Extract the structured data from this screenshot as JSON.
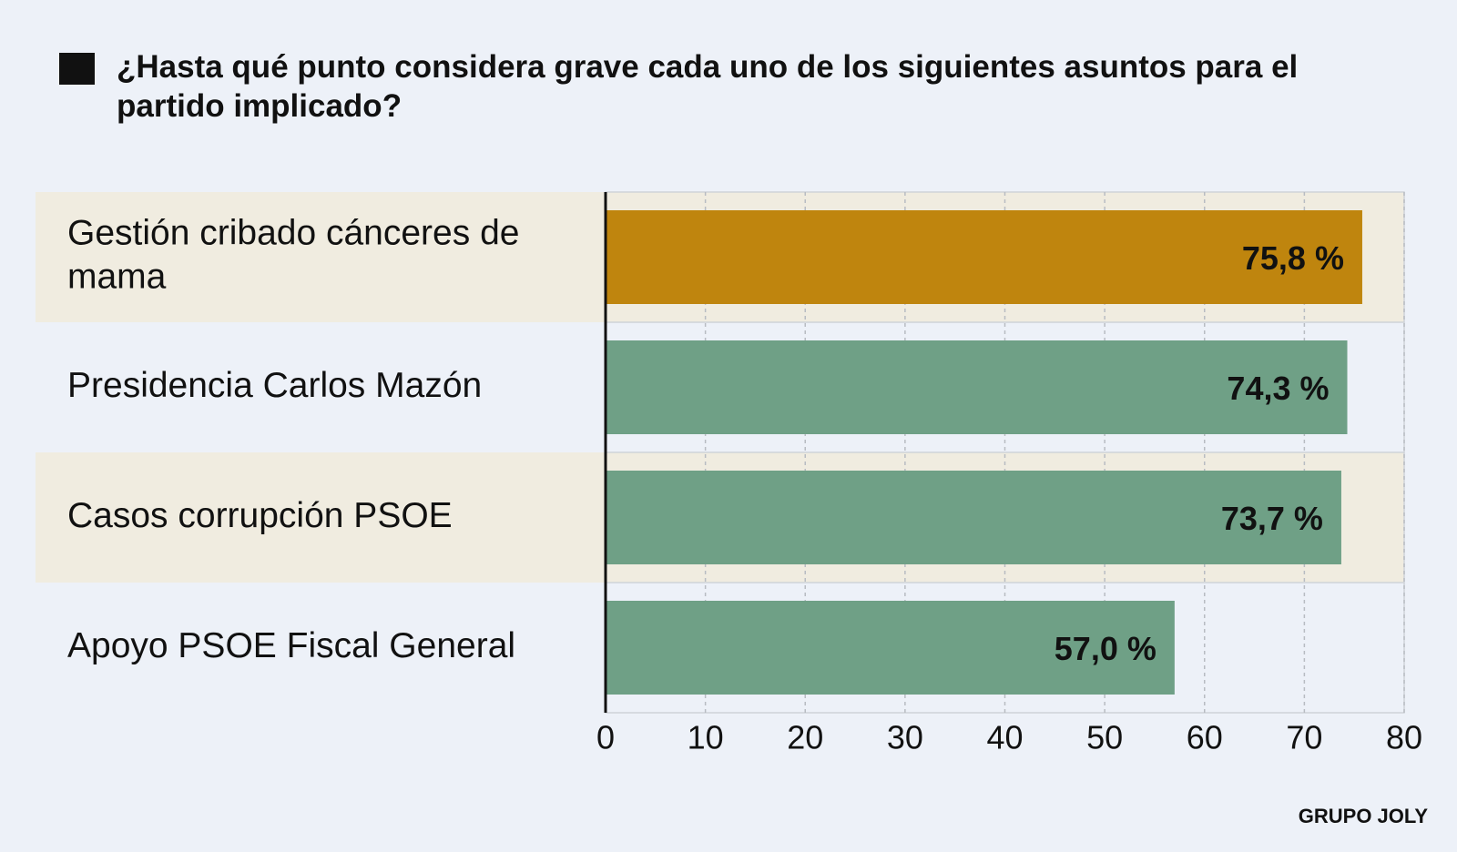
{
  "chart_data": {
    "type": "hbar",
    "title": "¿Hasta qué punto considera grave cada uno de los siguientes asuntos para el partido implicado?",
    "categories": [
      "Gestión cribado cánceres de mama",
      "Presidencia Carlos Mazón",
      "Casos corrupción PSOE",
      "Apoyo PSOE Fiscal General"
    ],
    "values": [
      75.8,
      74.3,
      73.7,
      57.0
    ],
    "value_labels": [
      "75,8 %",
      "74,3 %",
      "73,7 %",
      "57,0 %"
    ],
    "colors": [
      "#bf850e",
      "#6fa086",
      "#6fa086",
      "#6fa086"
    ],
    "xlim": [
      0,
      80
    ],
    "xticks": [
      0,
      10,
      20,
      30,
      40,
      50,
      60,
      70,
      80
    ],
    "grid": true,
    "source": "GRUPO JOLY"
  }
}
